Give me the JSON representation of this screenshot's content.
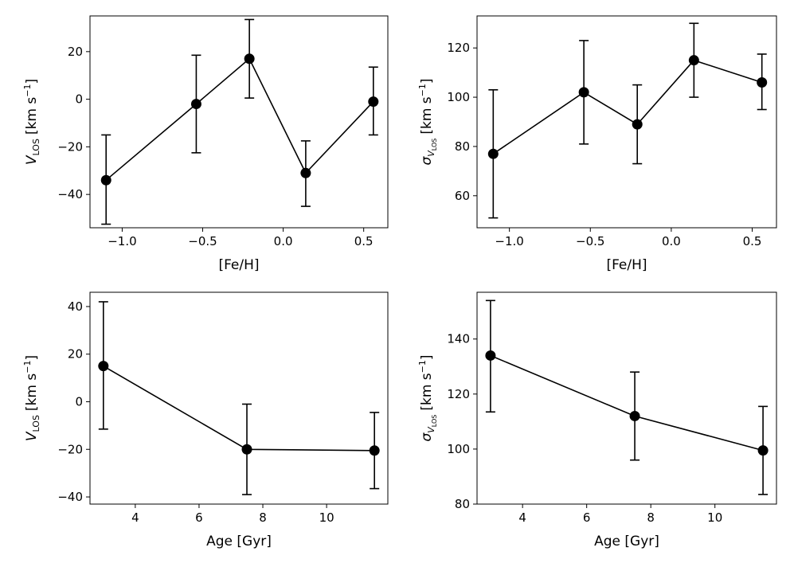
{
  "figure": {
    "background": "#ffffff",
    "marker_color": "#000000",
    "line_color": "#000000"
  },
  "chart_data": [
    {
      "id": "vlos-feh",
      "type": "line",
      "xlabel": "[Fe/H]",
      "ylabel": {
        "main": "V",
        "sub": "LOS",
        "unit": "[km s",
        "sup": "−1",
        "close": "]"
      },
      "xlim": [
        -1.2,
        0.65
      ],
      "ylim": [
        -54,
        35
      ],
      "xticks": [
        -1.0,
        -0.5,
        0.0,
        0.5
      ],
      "xtick_labels": [
        "−1.0",
        "−0.5",
        "0.0",
        "0.5"
      ],
      "yticks": [
        -40,
        -20,
        0,
        20
      ],
      "ytick_labels": [
        "−40",
        "−20",
        "0",
        "20"
      ],
      "x": [
        -1.1,
        -0.54,
        -0.21,
        0.14,
        0.56
      ],
      "y": [
        -34,
        -2,
        17,
        -31,
        -1
      ],
      "err_lo": [
        -52.5,
        -22.5,
        0.5,
        -45,
        -15
      ],
      "err_hi": [
        -15,
        18.5,
        33.5,
        -17.5,
        13.5
      ]
    },
    {
      "id": "sigma-feh",
      "type": "line",
      "xlabel": "[Fe/H]",
      "ylabel": {
        "main": "σ",
        "sub": "V",
        "subsub": "LOS",
        "unit": "[km s",
        "sup": "−1",
        "close": "]"
      },
      "xlim": [
        -1.2,
        0.65
      ],
      "ylim": [
        47,
        133
      ],
      "xticks": [
        -1.0,
        -0.5,
        0.0,
        0.5
      ],
      "xtick_labels": [
        "−1.0",
        "−0.5",
        "0.0",
        "0.5"
      ],
      "yticks": [
        60,
        80,
        100,
        120
      ],
      "ytick_labels": [
        "60",
        "80",
        "100",
        "120"
      ],
      "x": [
        -1.1,
        -0.54,
        -0.21,
        0.14,
        0.56
      ],
      "y": [
        77,
        102,
        89,
        115,
        106
      ],
      "err_lo": [
        51,
        81,
        73,
        100,
        95
      ],
      "err_hi": [
        103,
        123,
        105,
        130,
        117.5
      ]
    },
    {
      "id": "vlos-age",
      "type": "line",
      "xlabel": "Age [Gyr]",
      "ylabel": {
        "main": "V",
        "sub": "LOS",
        "unit": "[km s",
        "sup": "−1",
        "close": "]"
      },
      "xlim": [
        2.58,
        11.92
      ],
      "ylim": [
        -43,
        46
      ],
      "xticks": [
        4,
        6,
        8,
        10
      ],
      "xtick_labels": [
        "4",
        "6",
        "8",
        "10"
      ],
      "yticks": [
        -40,
        -20,
        0,
        20,
        40
      ],
      "ytick_labels": [
        "−40",
        "−20",
        "0",
        "20",
        "40"
      ],
      "x": [
        3,
        7.5,
        11.5
      ],
      "y": [
        15,
        -20,
        -20.5
      ],
      "err_lo": [
        -11.5,
        -39,
        -36.5
      ],
      "err_hi": [
        42,
        -1,
        -4.5
      ]
    },
    {
      "id": "sigma-age",
      "type": "line",
      "xlabel": "Age [Gyr]",
      "ylabel": {
        "main": "σ",
        "sub": "V",
        "subsub": "LOS",
        "unit": "[km s",
        "sup": "−1",
        "close": "]"
      },
      "xlim": [
        2.58,
        11.92
      ],
      "ylim": [
        80,
        157
      ],
      "xticks": [
        4,
        6,
        8,
        10
      ],
      "xtick_labels": [
        "4",
        "6",
        "8",
        "10"
      ],
      "yticks": [
        80,
        100,
        120,
        140
      ],
      "ytick_labels": [
        "80",
        "100",
        "120",
        "140"
      ],
      "x": [
        3,
        7.5,
        11.5
      ],
      "y": [
        134,
        112,
        99.5
      ],
      "err_lo": [
        113.5,
        96,
        83.5
      ],
      "err_hi": [
        154,
        128,
        115.5
      ]
    }
  ]
}
